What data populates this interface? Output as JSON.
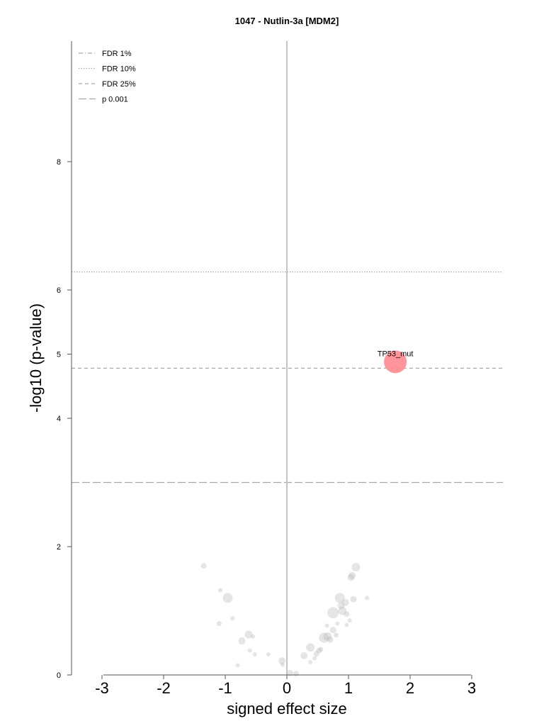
{
  "chart_data": {
    "type": "scatter",
    "title": "1047 - Nutlin-3a [MDM2]",
    "xlabel": "signed effect size",
    "ylabel": "-log10 (p-value)",
    "xlim": [
      -3.5,
      3.5
    ],
    "ylim": [
      0,
      10
    ],
    "xticks": [
      -3,
      -2,
      -1,
      0,
      1,
      2,
      3
    ],
    "yticks": [
      0,
      2,
      4,
      5,
      6,
      8
    ],
    "grid": false,
    "legend_position": "top-left",
    "thresholds": [
      {
        "name": "FDR 1%",
        "style": "dashdot",
        "y": null
      },
      {
        "name": "FDR 10%",
        "style": "dotted",
        "y": 6.28
      },
      {
        "name": "FDR 25%",
        "style": "dashed",
        "y": 4.78
      },
      {
        "name": "p 0.001",
        "style": "longdash",
        "y": 3.0
      }
    ],
    "annotations": [
      {
        "text": "TP53_mut",
        "x": 1.76,
        "y": 5.0
      }
    ],
    "colors": {
      "highlight": "#ff8a8f",
      "background_points": "#b4b4b4",
      "threshold_line": "#a8a8a8",
      "zero_line": "#c4c4c4"
    },
    "points": [
      {
        "x": 1.76,
        "y": 4.88,
        "size": 16,
        "highlight": true
      },
      {
        "x": -1.35,
        "y": 1.7,
        "size": 4,
        "highlight": false
      },
      {
        "x": -1.08,
        "y": 1.32,
        "size": 3,
        "highlight": false
      },
      {
        "x": -0.96,
        "y": 1.2,
        "size": 7,
        "highlight": false
      },
      {
        "x": -0.88,
        "y": 0.88,
        "size": 3,
        "highlight": false
      },
      {
        "x": -1.1,
        "y": 0.8,
        "size": 3.5,
        "highlight": false
      },
      {
        "x": -0.62,
        "y": 0.63,
        "size": 5.5,
        "highlight": false
      },
      {
        "x": -0.55,
        "y": 0.6,
        "size": 3,
        "highlight": false
      },
      {
        "x": -0.73,
        "y": 0.53,
        "size": 5,
        "highlight": false
      },
      {
        "x": -0.6,
        "y": 0.38,
        "size": 3,
        "highlight": false
      },
      {
        "x": -0.52,
        "y": 0.32,
        "size": 3,
        "highlight": false
      },
      {
        "x": -0.3,
        "y": 0.32,
        "size": 3,
        "highlight": false
      },
      {
        "x": -0.8,
        "y": 0.15,
        "size": 3,
        "highlight": false
      },
      {
        "x": -0.08,
        "y": 0.22,
        "size": 5,
        "highlight": false
      },
      {
        "x": -0.07,
        "y": 0.16,
        "size": 3,
        "highlight": false
      },
      {
        "x": 0.05,
        "y": 0.03,
        "size": 4.5,
        "highlight": false
      },
      {
        "x": 0.15,
        "y": 0.02,
        "size": 4,
        "highlight": false
      },
      {
        "x": 0.28,
        "y": 0.3,
        "size": 5,
        "highlight": false
      },
      {
        "x": 0.38,
        "y": 0.43,
        "size": 6,
        "highlight": false
      },
      {
        "x": 0.38,
        "y": 0.2,
        "size": 3,
        "highlight": false
      },
      {
        "x": 0.45,
        "y": 0.26,
        "size": 3,
        "highlight": false
      },
      {
        "x": 0.48,
        "y": 0.33,
        "size": 4,
        "highlight": false
      },
      {
        "x": 0.52,
        "y": 0.38,
        "size": 4,
        "highlight": false
      },
      {
        "x": 0.55,
        "y": 0.4,
        "size": 3.5,
        "highlight": false
      },
      {
        "x": 0.6,
        "y": 0.58,
        "size": 7,
        "highlight": false
      },
      {
        "x": 0.66,
        "y": 0.6,
        "size": 6,
        "highlight": false
      },
      {
        "x": 0.7,
        "y": 0.55,
        "size": 4.5,
        "highlight": false
      },
      {
        "x": 0.75,
        "y": 0.7,
        "size": 4.5,
        "highlight": false
      },
      {
        "x": 0.65,
        "y": 0.77,
        "size": 3,
        "highlight": false
      },
      {
        "x": 0.8,
        "y": 0.62,
        "size": 3.5,
        "highlight": false
      },
      {
        "x": 0.75,
        "y": 0.97,
        "size": 8,
        "highlight": false
      },
      {
        "x": 0.82,
        "y": 0.8,
        "size": 3,
        "highlight": false
      },
      {
        "x": 0.86,
        "y": 1.2,
        "size": 7,
        "highlight": false
      },
      {
        "x": 0.88,
        "y": 1.08,
        "size": 5,
        "highlight": false
      },
      {
        "x": 0.9,
        "y": 1.0,
        "size": 6,
        "highlight": false
      },
      {
        "x": 0.95,
        "y": 1.13,
        "size": 5,
        "highlight": false
      },
      {
        "x": 0.97,
        "y": 0.95,
        "size": 4,
        "highlight": false
      },
      {
        "x": 0.97,
        "y": 0.78,
        "size": 3,
        "highlight": false
      },
      {
        "x": 1.02,
        "y": 0.85,
        "size": 3,
        "highlight": false
      },
      {
        "x": 1.04,
        "y": 1.52,
        "size": 5,
        "highlight": false
      },
      {
        "x": 1.06,
        "y": 1.55,
        "size": 5,
        "highlight": false
      },
      {
        "x": 1.08,
        "y": 1.18,
        "size": 4.5,
        "highlight": false
      },
      {
        "x": 1.12,
        "y": 1.68,
        "size": 6,
        "highlight": false
      },
      {
        "x": 1.3,
        "y": 1.2,
        "size": 3,
        "highlight": false
      }
    ]
  }
}
